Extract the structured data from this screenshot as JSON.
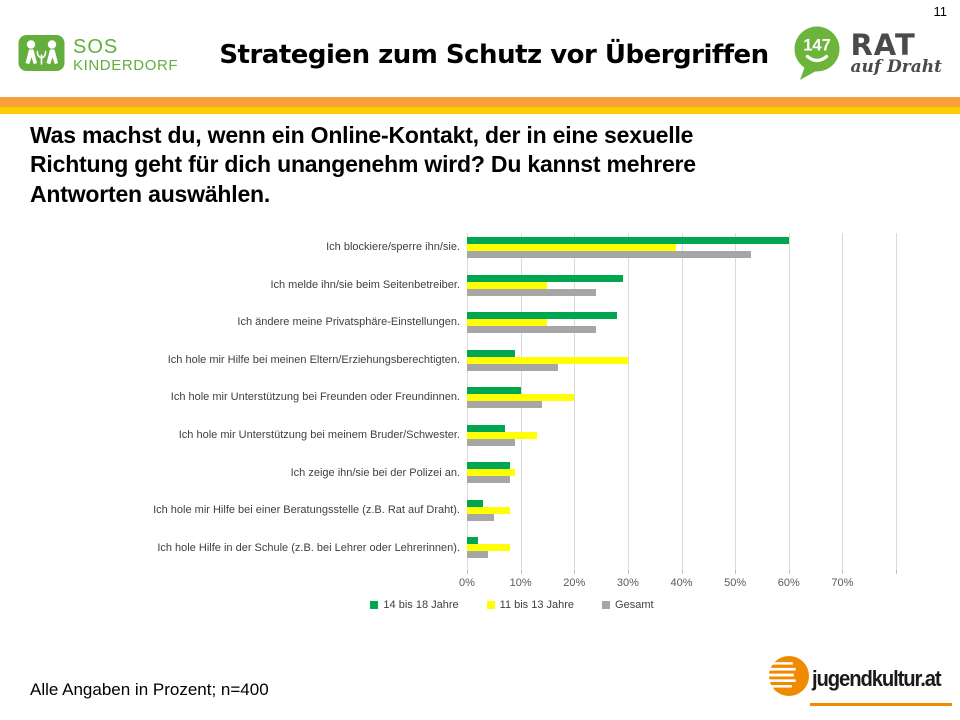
{
  "page": {
    "number": "11"
  },
  "header": {
    "title": "Strategien zum Schutz vor Übergriffen",
    "sos_logo": {
      "line1": "SOS",
      "line2": "KINDERDORF"
    },
    "rat_logo": {
      "bubble": "147",
      "line1": "RAT",
      "line2": "auf Draht"
    }
  },
  "question": {
    "text": "Was machst du, wenn ein Online-Kontakt, der in eine sexuelle Richtung geht für dich unangenehm wird? Du kannst mehrere Antworten auswählen.",
    "lines": [
      "Was machst du, wenn ein Online-Kontakt, der in eine sexuelle",
      "Richtung geht für dich unangenehm wird? Du kannst mehrere",
      "Antworten auswählen."
    ]
  },
  "chart_data": {
    "type": "bar",
    "orientation": "horizontal",
    "title": "",
    "xlabel": "",
    "ylabel": "",
    "xlim": [
      0,
      80
    ],
    "grid": true,
    "legend_position": "bottom",
    "x_ticks": [
      "0%",
      "10%",
      "20%",
      "30%",
      "40%",
      "50%",
      "60%",
      "70%"
    ],
    "categories": [
      "Ich blockiere/sperre ihn/sie.",
      "Ich melde ihn/sie beim Seitenbetreiber.",
      "Ich ändere meine Privatsphäre-Einstellungen.",
      "Ich hole mir Hilfe bei meinen Eltern/Erziehungsberechtigten.",
      "Ich hole mir Unterstützung bei Freunden oder Freundinnen.",
      "Ich hole mir Unterstützung bei meinem Bruder/Schwester.",
      "Ich zeige ihn/sie bei der Polizei an.",
      "Ich hole mir Hilfe bei einer Beratungsstelle (z.B. Rat auf Draht).",
      "Ich hole Hilfe in der Schule (z.B. bei Lehrer oder Lehrerinnen)."
    ],
    "series": [
      {
        "name": "14 bis 18 Jahre",
        "color": "#00A650",
        "values": [
          60,
          29,
          28,
          9,
          10,
          7,
          8,
          3,
          2
        ]
      },
      {
        "name": "11 bis 13 Jahre",
        "color": "#FFFF00",
        "values": [
          39,
          15,
          15,
          30,
          20,
          13,
          9,
          8,
          8
        ]
      },
      {
        "name": "Gesamt",
        "color": "#A6A6A6",
        "values": [
          53,
          24,
          24,
          17,
          14,
          9,
          8,
          5,
          4
        ]
      }
    ]
  },
  "footer": {
    "note": "Alle Angaben in Prozent; n=400",
    "logo_text": "jugendkultur.at"
  },
  "colors": {
    "bar_green": "#00A650",
    "bar_yellow": "#FFFF00",
    "bar_gray": "#A6A6A6",
    "stripe_orange": "#F9A03B",
    "stripe_yellow": "#FFCC00",
    "sos_green": "#64AE3E",
    "rat_green": "#6CB43C",
    "rat_text": "#4A4A4A",
    "jk_orange": "#F08A00"
  }
}
